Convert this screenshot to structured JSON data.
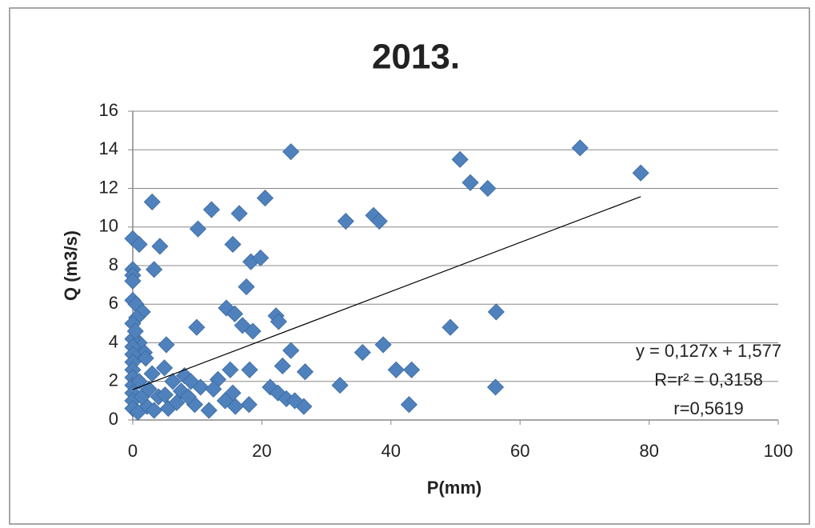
{
  "chart_data": {
    "type": "scatter",
    "title": "2013.",
    "x_label": "P(mm)",
    "y_label": "Q (m3/s)",
    "color": "#4f81bd",
    "x": [
      24.5,
      69.3,
      50.7,
      52.3,
      55,
      78.7,
      3,
      12.2,
      16.5,
      20.5,
      10.1,
      15.5,
      33,
      37.3,
      38.2,
      0,
      1,
      4.2,
      3.3,
      0,
      0,
      0,
      18.3,
      19.8,
      17.6,
      0,
      0.5,
      1.5,
      14.5,
      15.8,
      17,
      18.6,
      22.2,
      22.6,
      24.5,
      9.9,
      5.2,
      49.2,
      56.3,
      35.6,
      38.8,
      40.8,
      43.2,
      42.8,
      56.2,
      32.1,
      26.7,
      26.5,
      23.2,
      21.3,
      22.5,
      23.8,
      25.1,
      18.1,
      18,
      15.1,
      15.5,
      15.9,
      13.2,
      14.3,
      11.8,
      10.5,
      9.6,
      8,
      7.5,
      6.2,
      5.5,
      4.9,
      4,
      3,
      2.2,
      1.8,
      1,
      0,
      0,
      0,
      0,
      0,
      0,
      0,
      0,
      0,
      0,
      0.6,
      0,
      0.4,
      2,
      1,
      1.4,
      2.5,
      9,
      8.6,
      6.8,
      5,
      12.5,
      3.3,
      0.8
    ],
    "values": [
      13.9,
      14.1,
      13.5,
      12.3,
      12,
      12.8,
      11.3,
      10.9,
      10.7,
      11.5,
      9.9,
      9.1,
      10.3,
      10.6,
      10.3,
      9.4,
      9.1,
      9,
      7.8,
      7.8,
      7.5,
      7.2,
      8.2,
      8.4,
      6.9,
      6.2,
      6,
      5.6,
      5.8,
      5.5,
      4.9,
      4.6,
      5.4,
      5.1,
      3.6,
      4.8,
      3.9,
      4.8,
      5.6,
      3.5,
      3.9,
      2.6,
      2.6,
      0.8,
      1.7,
      1.8,
      2.5,
      0.7,
      2.8,
      1.7,
      1.4,
      1.1,
      1,
      2.6,
      0.8,
      2.6,
      1.4,
      0.7,
      2.1,
      1,
      0.5,
      1.7,
      0.8,
      2.3,
      1.5,
      2,
      0.6,
      2.7,
      1.2,
      2.4,
      0.7,
      3.5,
      4,
      4.2,
      3.8,
      3.4,
      3,
      2.6,
      2.2,
      1.8,
      1.4,
      1,
      0.6,
      5.3,
      5,
      4.6,
      3.2,
      2,
      1.2,
      1.6,
      2,
      1.2,
      0.9,
      1.3,
      1.6,
      0.5,
      0.4
    ],
    "trendline": {
      "x": [
        0,
        78.7
      ],
      "values": [
        1.577,
        11.572
      ]
    },
    "annotations": [
      "y = 0,127x + 1,577",
      "R=r² = 0,3158",
      "r=0,5619"
    ],
    "xlim": [
      0,
      100
    ],
    "xticks": [
      0,
      20,
      40,
      60,
      80,
      100
    ],
    "ylim": [
      0,
      16
    ],
    "yticks": [
      0,
      2,
      4,
      6,
      8,
      10,
      12,
      14,
      16
    ],
    "grid": true
  }
}
